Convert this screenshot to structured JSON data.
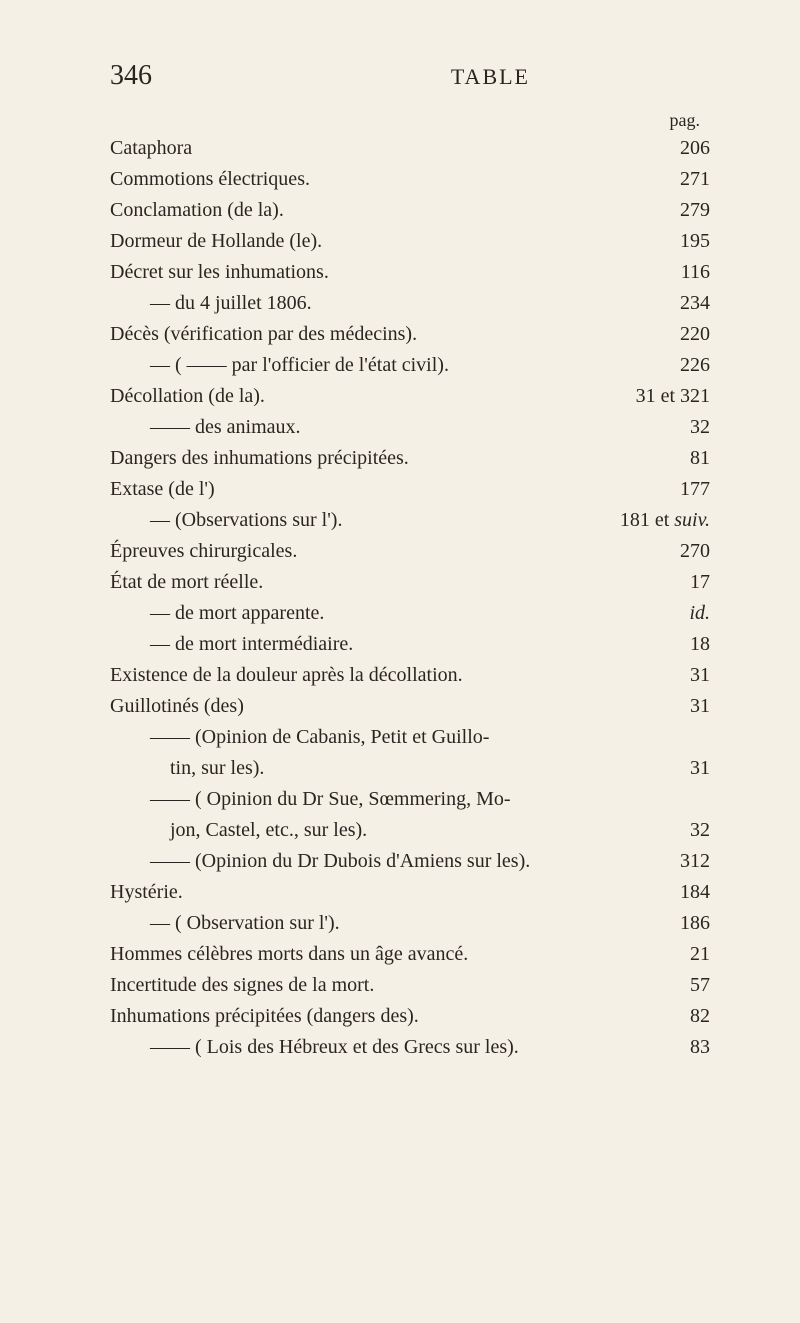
{
  "header": {
    "pageNumber": "346",
    "title": "TABLE",
    "pagLabel": "pag."
  },
  "entries": [
    {
      "text": "Cataphora",
      "page": "206",
      "indent": 0
    },
    {
      "text": "Commotions électriques.",
      "page": "271",
      "indent": 0
    },
    {
      "text": "Conclamation (de la).",
      "page": "279",
      "indent": 0
    },
    {
      "text": "Dormeur de Hollande (le).",
      "page": "195",
      "indent": 0
    },
    {
      "text": "Décret sur les inhumations.",
      "page": "116",
      "indent": 0
    },
    {
      "text": "—   du 4 juillet 1806.",
      "page": "234",
      "indent": 1
    },
    {
      "text": "Décès (vérification par des médecins).",
      "page": "220",
      "indent": 0
    },
    {
      "text": "—   (   ——    par l'officier de l'état civil).",
      "page": "226",
      "indent": 1
    },
    {
      "text": "Décollation (de la).",
      "page": "31 et 321",
      "indent": 0
    },
    {
      "text": "——   des animaux.",
      "page": "32",
      "indent": 1
    },
    {
      "text": "Dangers des inhumations précipitées.",
      "page": "81",
      "indent": 0
    },
    {
      "text": "Extase (de l')",
      "page": "177",
      "indent": 0
    },
    {
      "text": "—   (Observations sur l').",
      "page": "181 et suiv.",
      "indent": 1,
      "pageItalic": "suiv."
    },
    {
      "text": "Épreuves chirurgicales.",
      "page": "270",
      "indent": 0
    },
    {
      "text": "État de mort réelle.",
      "page": "17",
      "indent": 0
    },
    {
      "text": "— de mort apparente.",
      "page": "id.",
      "indent": 1,
      "pageItalicAll": true
    },
    {
      "text": "— de mort intermédiaire.",
      "page": "18",
      "indent": 1
    },
    {
      "text": "Existence de la douleur après la décollation.",
      "page": "31",
      "indent": 0
    },
    {
      "text": "Guillotinés (des)",
      "page": "31",
      "indent": 0
    },
    {
      "text": "——    (Opinion de Cabanis, Petit et Guillo-",
      "page": "",
      "indent": 1
    },
    {
      "text": "tin, sur les).",
      "page": "31",
      "indent": 2
    },
    {
      "text": "——    ( Opinion du Dr Sue, Sœmmering, Mo-",
      "page": "",
      "indent": 1
    },
    {
      "text": "jon, Castel, etc., sur les).",
      "page": "32",
      "indent": 2
    },
    {
      "text": "——    (Opinion du Dr Dubois d'Amiens sur les).",
      "page": "312",
      "indent": 1
    },
    {
      "text": "Hystérie.",
      "page": "184",
      "indent": 0
    },
    {
      "text": "—   ( Observation sur l').",
      "page": "186",
      "indent": 1
    },
    {
      "text": "Hommes célèbres morts dans un âge avancé.",
      "page": "21",
      "indent": 0
    },
    {
      "text": "Incertitude des signes de la mort.",
      "page": "57",
      "indent": 0
    },
    {
      "text": "Inhumations précipitées (dangers des).",
      "page": "82",
      "indent": 0
    },
    {
      "text": "——    ( Lois des Hébreux et des Grecs sur les).",
      "page": "83",
      "indent": 1
    }
  ]
}
